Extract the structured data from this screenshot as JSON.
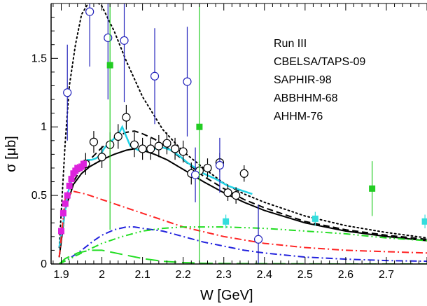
{
  "chart_data": {
    "type": "scatter",
    "xlabel": "W [GeV]",
    "ylabel": "σ [μb]",
    "xlim": [
      1.875,
      2.8
    ],
    "ylim": [
      0,
      1.9
    ],
    "x_ticks": [
      1.9,
      2.0,
      2.1,
      2.2,
      2.3,
      2.4,
      2.5,
      2.6,
      2.7
    ],
    "x_tick_labels": [
      "1.9",
      "2",
      "2.1",
      "2.2",
      "2.3",
      "2.4",
      "2.5",
      "2.6",
      "2.7"
    ],
    "y_ticks": [
      0,
      0.5,
      1.0,
      1.5
    ],
    "y_tick_labels": [
      "0",
      "0.5",
      "1",
      "1.5"
    ],
    "legend_position": "top-right",
    "legend": [
      "Run III",
      "CBELSA/TAPS-09",
      "SAPHIR-98",
      "ABBHHM-68",
      "AHHM-76"
    ],
    "curves": [
      {
        "style": "solid",
        "color": "#000000",
        "x": [
          1.895,
          1.91,
          1.93,
          1.95,
          1.97,
          2.0,
          2.03,
          2.06,
          2.08,
          2.1,
          2.13,
          2.16,
          2.2,
          2.25,
          2.3,
          2.35,
          2.4,
          2.5,
          2.6,
          2.7,
          2.8
        ],
        "y": [
          0.05,
          0.4,
          0.58,
          0.66,
          0.71,
          0.76,
          0.8,
          0.83,
          0.84,
          0.83,
          0.8,
          0.76,
          0.69,
          0.6,
          0.52,
          0.45,
          0.39,
          0.3,
          0.24,
          0.2,
          0.17
        ]
      },
      {
        "style": "dashed",
        "color": "#000000",
        "x": [
          1.895,
          1.91,
          1.93,
          1.95,
          1.97,
          2.0,
          2.03,
          2.06,
          2.08,
          2.1,
          2.13,
          2.16,
          2.2,
          2.25,
          2.3,
          2.35,
          2.4,
          2.5,
          2.6,
          2.7,
          2.8
        ],
        "y": [
          0.05,
          0.4,
          0.6,
          0.7,
          0.76,
          0.85,
          0.92,
          0.96,
          0.97,
          0.95,
          0.91,
          0.85,
          0.76,
          0.64,
          0.55,
          0.47,
          0.41,
          0.31,
          0.25,
          0.21,
          0.18
        ]
      },
      {
        "style": "dotted",
        "color": "#000000",
        "x": [
          1.895,
          1.91,
          1.92,
          1.935,
          1.95,
          1.97,
          1.98,
          2.0,
          2.03,
          2.06,
          2.1,
          2.15,
          2.2,
          2.25,
          2.3,
          2.35,
          2.4,
          2.5,
          2.6,
          2.7,
          2.8
        ],
        "y": [
          0.12,
          0.9,
          1.3,
          1.6,
          1.82,
          1.92,
          1.93,
          1.88,
          1.7,
          1.48,
          1.22,
          0.98,
          0.82,
          0.7,
          0.59,
          0.51,
          0.45,
          0.35,
          0.28,
          0.23,
          0.19
        ]
      },
      {
        "style": "solid",
        "color": "#22d3e6",
        "x": [
          1.895,
          1.905,
          1.915,
          1.925,
          1.935,
          1.945,
          1.955,
          1.965,
          1.975,
          1.985,
          1.995,
          2.005,
          2.015,
          2.025,
          2.035,
          2.045,
          2.05,
          2.06,
          2.07,
          2.09,
          2.11,
          2.13,
          2.15,
          2.17,
          2.19,
          2.21,
          2.23,
          2.25,
          2.28,
          2.31,
          2.34,
          2.37
        ],
        "y": [
          0.12,
          0.3,
          0.5,
          0.62,
          0.68,
          0.72,
          0.74,
          0.76,
          0.76,
          0.77,
          0.79,
          0.84,
          0.88,
          0.9,
          0.93,
          0.97,
          1.0,
          0.93,
          0.86,
          0.83,
          0.83,
          0.84,
          0.85,
          0.83,
          0.79,
          0.74,
          0.7,
          0.66,
          0.62,
          0.57,
          0.54,
          0.51
        ]
      },
      {
        "style": "dashdot",
        "color": "#ff2222",
        "x": [
          1.895,
          1.91,
          1.93,
          1.96,
          2.0,
          2.05,
          2.1,
          2.15,
          2.2,
          2.3,
          2.4,
          2.5,
          2.6,
          2.7,
          2.8
        ],
        "y": [
          0.05,
          0.48,
          0.53,
          0.51,
          0.47,
          0.42,
          0.37,
          0.32,
          0.27,
          0.2,
          0.15,
          0.12,
          0.1,
          0.09,
          0.08
        ]
      },
      {
        "style": "dashdot",
        "color": "#2222dd",
        "x": [
          1.895,
          1.92,
          1.95,
          1.98,
          2.0,
          2.03,
          2.06,
          2.08,
          2.1,
          2.15,
          2.2,
          2.25,
          2.3,
          2.35,
          2.4,
          2.5,
          2.6,
          2.7,
          2.8
        ],
        "y": [
          0.0,
          0.04,
          0.1,
          0.17,
          0.21,
          0.25,
          0.27,
          0.27,
          0.26,
          0.24,
          0.2,
          0.16,
          0.13,
          0.1,
          0.08,
          0.05,
          0.035,
          0.025,
          0.02
        ]
      },
      {
        "style": "dashdotdot",
        "color": "#22dd22",
        "x": [
          1.895,
          1.95,
          2.0,
          2.05,
          2.1,
          2.15,
          2.2,
          2.25,
          2.3,
          2.4,
          2.5,
          2.6,
          2.7,
          2.8
        ],
        "y": [
          0.0,
          0.08,
          0.15,
          0.2,
          0.24,
          0.26,
          0.27,
          0.27,
          0.27,
          0.26,
          0.24,
          0.22,
          0.19,
          0.17
        ]
      },
      {
        "style": "longdash",
        "color": "#22dd22",
        "x": [
          1.895,
          1.91,
          1.94,
          1.97,
          2.0,
          2.05,
          2.1,
          2.15,
          2.2,
          2.25,
          2.3,
          2.4,
          2.5,
          2.6,
          2.7,
          2.8
        ],
        "y": [
          0.0,
          0.04,
          0.08,
          0.1,
          0.1,
          0.07,
          0.04,
          0.02,
          0.01,
          0.005,
          0.003,
          0.002,
          0.001,
          0.0,
          0.0,
          0.0
        ]
      }
    ],
    "series": [
      {
        "marker": "open-circle",
        "color": "#000000",
        "points": [
          {
            "x": 1.96,
            "y": 0.73,
            "err": 0.08
          },
          {
            "x": 1.98,
            "y": 0.89,
            "err": 0.08
          },
          {
            "x": 2.0,
            "y": 0.78,
            "err": 0.08
          },
          {
            "x": 2.02,
            "y": 0.87,
            "err": 0.09
          },
          {
            "x": 2.04,
            "y": 0.93,
            "err": 0.09
          },
          {
            "x": 2.06,
            "y": 1.07,
            "err": 0.09
          },
          {
            "x": 2.08,
            "y": 0.87,
            "err": 0.09
          },
          {
            "x": 2.1,
            "y": 0.84,
            "err": 0.08
          },
          {
            "x": 2.12,
            "y": 0.84,
            "err": 0.08
          },
          {
            "x": 2.14,
            "y": 0.86,
            "err": 0.08
          },
          {
            "x": 2.16,
            "y": 0.88,
            "err": 0.08
          },
          {
            "x": 2.18,
            "y": 0.84,
            "err": 0.08
          },
          {
            "x": 2.2,
            "y": 0.82,
            "err": 0.08
          },
          {
            "x": 2.22,
            "y": 0.66,
            "err": 0.08
          },
          {
            "x": 2.24,
            "y": 0.68,
            "err": 0.07
          },
          {
            "x": 2.26,
            "y": 0.7,
            "err": 0.07
          },
          {
            "x": 2.29,
            "y": 0.74,
            "err": 0.07
          },
          {
            "x": 2.31,
            "y": 0.52,
            "err": 0.06
          },
          {
            "x": 2.33,
            "y": 0.5,
            "err": 0.06
          },
          {
            "x": 2.35,
            "y": 0.66,
            "err": 0.06
          }
        ]
      },
      {
        "marker": "open-circle",
        "color": "#2222bb",
        "points": [
          {
            "x": 1.915,
            "y": 1.25,
            "err": 0.35
          },
          {
            "x": 1.97,
            "y": 1.84,
            "err": 0.4
          },
          {
            "x": 2.015,
            "y": 1.65,
            "err": 0.45
          },
          {
            "x": 2.055,
            "y": 1.63,
            "err": 0.45
          },
          {
            "x": 2.13,
            "y": 1.37,
            "err": 0.35
          },
          {
            "x": 2.21,
            "y": 1.33,
            "err": 0.4
          },
          {
            "x": 2.23,
            "y": 0.65,
            "err": 0.2
          },
          {
            "x": 2.29,
            "y": 0.72,
            "err": 0.2
          },
          {
            "x": 2.385,
            "y": 0.18,
            "err": 0.25
          }
        ]
      },
      {
        "marker": "filled-square",
        "color": "#dd22dd",
        "points": [
          {
            "x": 1.9,
            "y": 0.24,
            "err": 0.03
          },
          {
            "x": 1.905,
            "y": 0.37,
            "err": 0.03
          },
          {
            "x": 1.91,
            "y": 0.44,
            "err": 0.03
          },
          {
            "x": 1.915,
            "y": 0.5,
            "err": 0.03
          },
          {
            "x": 1.92,
            "y": 0.57,
            "err": 0.03
          },
          {
            "x": 1.925,
            "y": 0.62,
            "err": 0.03
          },
          {
            "x": 1.93,
            "y": 0.66,
            "err": 0.03
          },
          {
            "x": 1.935,
            "y": 0.68,
            "err": 0.03
          },
          {
            "x": 1.94,
            "y": 0.7,
            "err": 0.03
          },
          {
            "x": 1.945,
            "y": 0.7,
            "err": 0.03
          },
          {
            "x": 1.95,
            "y": 0.71,
            "err": 0.03
          },
          {
            "x": 1.955,
            "y": 0.73,
            "err": 0.03
          }
        ]
      },
      {
        "marker": "filled-square",
        "color": "#22cc22",
        "points": [
          {
            "x": 2.02,
            "y": 1.45,
            "err": 1.2
          },
          {
            "x": 2.24,
            "y": 1.0,
            "err": 1.2
          },
          {
            "x": 2.665,
            "y": 0.55,
            "err": 0.2
          }
        ]
      },
      {
        "marker": "filled-square",
        "color": "#33dddd",
        "points": [
          {
            "x": 2.305,
            "y": 0.31,
            "err": 0.05
          },
          {
            "x": 2.525,
            "y": 0.33,
            "err": 0.05
          },
          {
            "x": 2.795,
            "y": 0.31,
            "err": 0.05
          }
        ]
      }
    ]
  }
}
